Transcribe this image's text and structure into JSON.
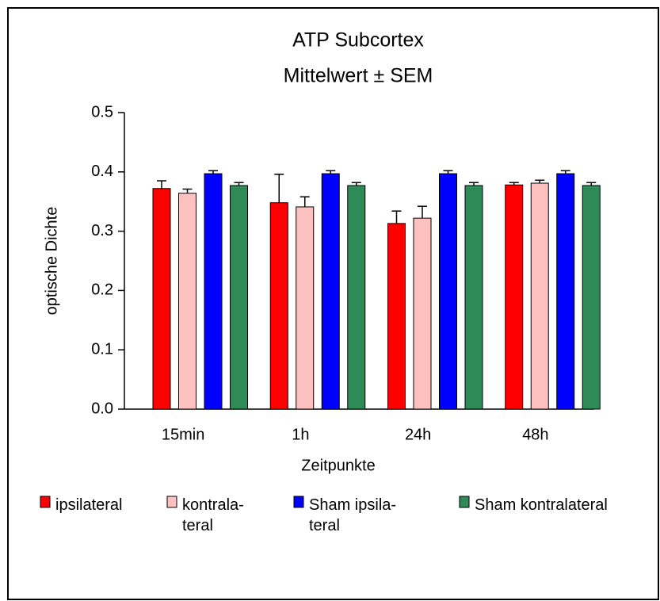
{
  "chart_data": {
    "type": "bar",
    "title": "ATP Subcortex",
    "subtitle": "Mittelwert ± SEM",
    "ylabel": "optische Dichte",
    "xlabel": "Zeitpunkte",
    "categories": [
      "15min",
      "1h",
      "24h",
      "48h"
    ],
    "series": [
      {
        "name": "ipsilateral",
        "color": "#ff0000",
        "values": [
          0.372,
          0.348,
          0.313,
          0.378
        ],
        "errors": [
          0.013,
          0.048,
          0.021,
          0.004
        ]
      },
      {
        "name": "kontrala-\nteral",
        "color": "#ffc0c0",
        "values": [
          0.364,
          0.341,
          0.322,
          0.381
        ],
        "errors": [
          0.007,
          0.017,
          0.02,
          0.005
        ]
      },
      {
        "name": "Sham ipsila-\nteral",
        "color": "#0000ff",
        "values": [
          0.397,
          0.397,
          0.397,
          0.397
        ],
        "errors": [
          0.005,
          0.005,
          0.005,
          0.005
        ]
      },
      {
        "name": "Sham kontralateral",
        "color": "#2e8b57",
        "values": [
          0.377,
          0.377,
          0.377,
          0.377
        ],
        "errors": [
          0.005,
          0.005,
          0.005,
          0.005
        ]
      }
    ],
    "ylim": [
      0,
      0.5
    ],
    "yticks": [
      {
        "value": 0,
        "label": "0.0"
      },
      0.1,
      0.2,
      0.3,
      0.4,
      0.5
    ],
    "grid": false,
    "legend": "bottom"
  }
}
